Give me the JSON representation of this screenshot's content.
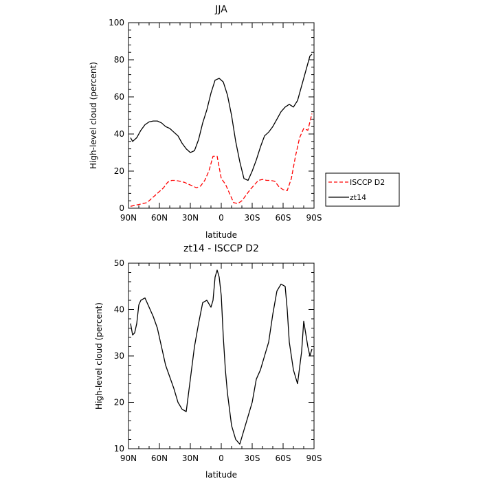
{
  "chart_data": [
    {
      "type": "line",
      "title": "JJA",
      "xlabel": "latitude",
      "ylabel": "High-level cloud (percent)",
      "xlim": [
        90,
        -90
      ],
      "ylim": [
        0,
        100
      ],
      "xticks": [
        90,
        60,
        30,
        0,
        -30,
        -60,
        -90
      ],
      "xtick_labels": [
        "90N",
        "60N",
        "30N",
        "0",
        "30S",
        "60S",
        "90S"
      ],
      "yticks": [
        0,
        20,
        40,
        60,
        80,
        100
      ],
      "ytick_labels": [
        "0",
        "20",
        "40",
        "60",
        "80",
        "100"
      ],
      "grid": false,
      "legend_position": "outside-right",
      "series": [
        {
          "name": "ISCCP D2",
          "color": "#ff0000",
          "style": "dashed",
          "x": [
            88,
            84,
            80,
            76,
            72,
            68,
            64,
            60,
            56,
            52,
            48,
            44,
            40,
            36,
            32,
            28,
            24,
            20,
            16,
            12,
            8,
            4,
            0,
            -4,
            -8,
            -12,
            -16,
            -20,
            -24,
            -28,
            -32,
            -36,
            -40,
            -44,
            -48,
            -52,
            -56,
            -60,
            -64,
            -68,
            -72,
            -76,
            -80,
            -84,
            -88
          ],
          "y": [
            1,
            1.5,
            2,
            2.5,
            3,
            5,
            7,
            9,
            11,
            14,
            15,
            15,
            14.5,
            14,
            13,
            12,
            11,
            12,
            15,
            20,
            28,
            28,
            16,
            13,
            8,
            3,
            2.5,
            4,
            7,
            10,
            12.5,
            15,
            15.5,
            15,
            15,
            14.5,
            11.5,
            10,
            9.5,
            16,
            28,
            38,
            43,
            42,
            51
          ]
        },
        {
          "name": "zt14",
          "color": "#000000",
          "style": "solid",
          "x": [
            88,
            86,
            82,
            78,
            74,
            70,
            66,
            62,
            58,
            54,
            50,
            46,
            42,
            38,
            34,
            30,
            26,
            22,
            18,
            14,
            10,
            6,
            2,
            -2,
            -6,
            -10,
            -14,
            -18,
            -22,
            -26,
            -30,
            -34,
            -38,
            -42,
            -46,
            -50,
            -54,
            -58,
            -62,
            -66,
            -70,
            -74,
            -78,
            -82,
            -86,
            -88
          ],
          "y": [
            38,
            36,
            38,
            42,
            45,
            46.5,
            47,
            47,
            46,
            44,
            43,
            41,
            39,
            35,
            32,
            30,
            31,
            37,
            46,
            53,
            62,
            69,
            70,
            68,
            61,
            50,
            36,
            25,
            16,
            15,
            20,
            26,
            33,
            39,
            41,
            44,
            48,
            52,
            54.5,
            56,
            54.5,
            58,
            66,
            74,
            82,
            83
          ]
        }
      ]
    },
    {
      "type": "line",
      "title": "zt14 - ISCCP D2",
      "xlabel": "latitude",
      "ylabel": "High-level cloud (percent)",
      "xlim": [
        90,
        -90
      ],
      "ylim": [
        10,
        50
      ],
      "xticks": [
        90,
        60,
        30,
        0,
        -30,
        -60,
        -90
      ],
      "xtick_labels": [
        "90N",
        "60N",
        "30N",
        "0",
        "30S",
        "60S",
        "90S"
      ],
      "yticks": [
        10,
        20,
        30,
        40,
        50
      ],
      "ytick_labels": [
        "10",
        "20",
        "30",
        "40",
        "50"
      ],
      "grid": false,
      "series": [
        {
          "color": "#000000",
          "style": "solid",
          "x": [
            88,
            86,
            84,
            82,
            80,
            78,
            74,
            70,
            66,
            62,
            58,
            54,
            50,
            46,
            42,
            38,
            34,
            30,
            26,
            22,
            18,
            14,
            10,
            8,
            6,
            4,
            2,
            0,
            -2,
            -4,
            -6,
            -10,
            -14,
            -18,
            -22,
            -26,
            -30,
            -34,
            -38,
            -42,
            -46,
            -50,
            -54,
            -58,
            -62,
            -64,
            -66,
            -70,
            -74,
            -78,
            -80,
            -84,
            -86,
            -88
          ],
          "y": [
            37,
            34.5,
            35,
            37,
            41,
            42,
            42.5,
            40.5,
            38.5,
            36,
            32,
            28,
            25.5,
            23,
            20,
            18.5,
            18,
            25,
            32,
            37,
            41.5,
            42,
            40.5,
            42,
            47,
            48.5,
            47,
            43,
            34,
            27,
            22,
            15,
            12,
            11,
            14,
            17,
            20,
            25,
            27,
            30,
            33,
            39,
            44,
            45.5,
            45,
            40,
            33,
            27,
            24,
            31,
            37.5,
            32,
            30,
            31.5
          ]
        }
      ]
    }
  ]
}
